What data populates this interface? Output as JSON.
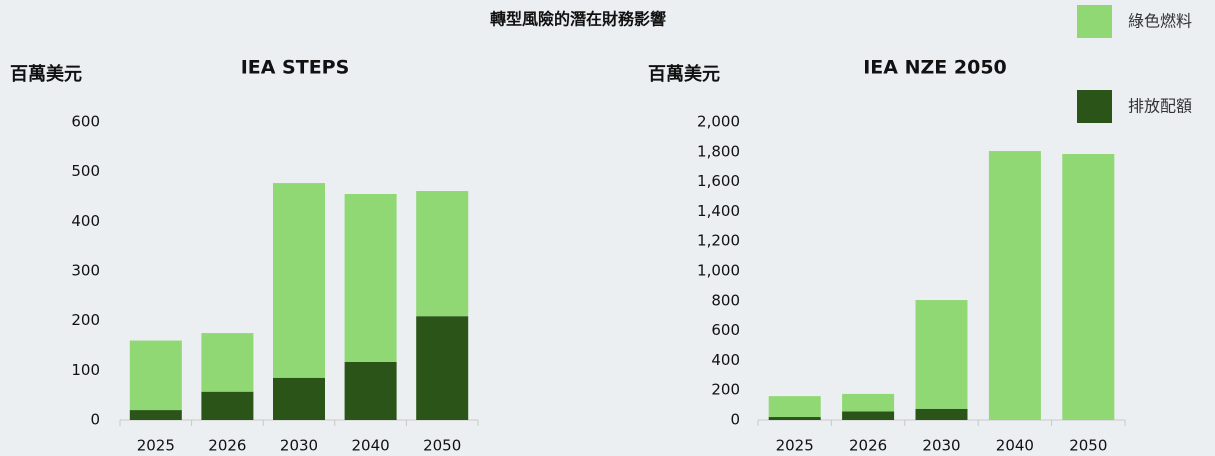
{
  "title": "轉型風險的潛在財務影響",
  "chart_data": [
    {
      "type": "bar",
      "subtitle": "IEA STEPS",
      "ylabel": "百萬美元",
      "stacked": true,
      "categories": [
        "2025",
        "2026",
        "2030",
        "2040",
        "2050"
      ],
      "series": [
        {
          "name": "綠色燃料",
          "color": "#8fd873",
          "values": [
            140,
            118,
            392,
            338,
            252
          ]
        },
        {
          "name": "排放配額",
          "color": "#2b5418",
          "values": [
            20,
            57,
            85,
            117,
            209
          ]
        }
      ],
      "ylim": [
        0,
        600
      ],
      "yticks": [
        0,
        100,
        200,
        300,
        400,
        500,
        600
      ]
    },
    {
      "type": "bar",
      "subtitle": "IEA NZE 2050",
      "ylabel": "百萬美元",
      "stacked": true,
      "categories": [
        "2025",
        "2026",
        "2030",
        "2040",
        "2050"
      ],
      "series": [
        {
          "name": "綠色燃料",
          "color": "#8fd873",
          "values": [
            140,
            118,
            730,
            1805,
            1785
          ]
        },
        {
          "name": "排放配額",
          "color": "#2b5418",
          "values": [
            20,
            57,
            75,
            0,
            0
          ]
        }
      ],
      "ylim": [
        0,
        2000
      ],
      "yticks": [
        0,
        200,
        400,
        600,
        800,
        {
          "value": 1000,
          "label": "1,000"
        },
        {
          "value": 1200,
          "label": "1,200"
        },
        {
          "value": 1400,
          "label": "1,400"
        },
        {
          "value": 1600,
          "label": "1,600"
        },
        {
          "value": 1800,
          "label": "1,800"
        },
        {
          "value": 2000,
          "label": "2,000"
        }
      ]
    }
  ]
}
